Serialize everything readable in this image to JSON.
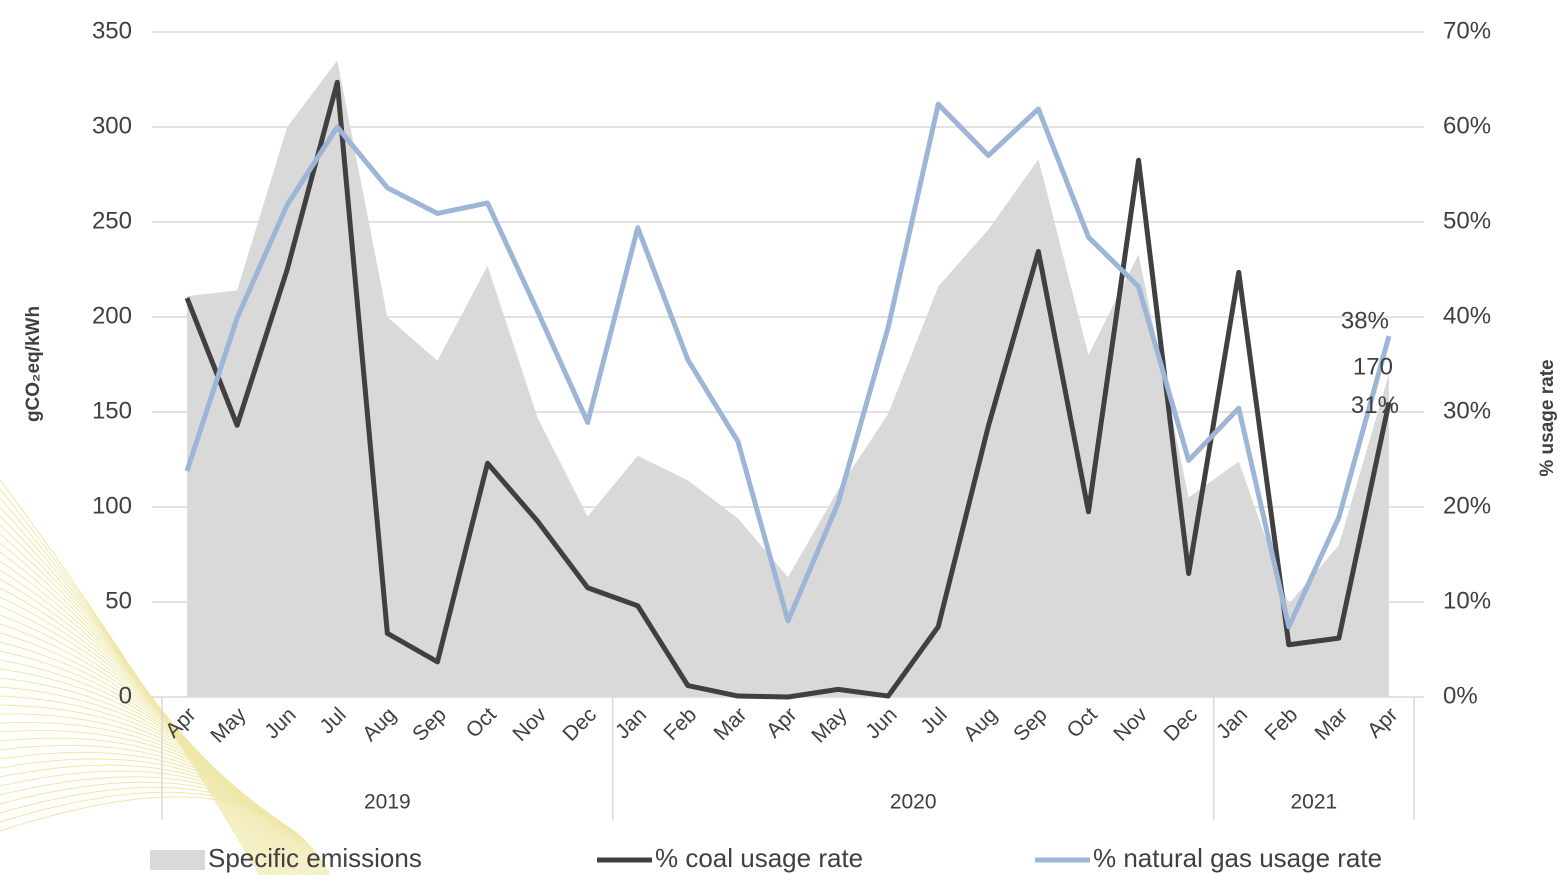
{
  "chart_data": {
    "type": "combo",
    "y_label": "gCO₂eq/kWh",
    "y2_label": "% usage rate",
    "categories": [
      "Apr",
      "May",
      "Jun",
      "Jul",
      "Aug",
      "Sep",
      "Oct",
      "Nov",
      "Dec",
      "Jan",
      "Feb",
      "Mar",
      "Apr",
      "May",
      "Jun",
      "Jul",
      "Aug",
      "Sep",
      "Oct",
      "Nov",
      "Dec",
      "Jan",
      "Feb",
      "Mar",
      "Apr"
    ],
    "category_groups": [
      {
        "label": "2019",
        "span": 9
      },
      {
        "label": "2020",
        "span": 12
      },
      {
        "label": "2021",
        "span": 4
      }
    ],
    "ylim": [
      0,
      350
    ],
    "yticks": [
      0,
      50,
      100,
      150,
      200,
      250,
      300,
      350
    ],
    "y2lim": [
      0,
      70
    ],
    "y2ticks": [
      {
        "value": 0,
        "label": "0%"
      },
      {
        "value": 10,
        "label": "10%"
      },
      {
        "value": 20,
        "label": "20%"
      },
      {
        "value": 30,
        "label": "30%"
      },
      {
        "value": 40,
        "label": "40%"
      },
      {
        "value": 50,
        "label": "50%"
      },
      {
        "value": 60,
        "label": "60%"
      },
      {
        "value": 70,
        "label": "70%"
      }
    ],
    "grid": true,
    "legend": "bottom",
    "series": [
      {
        "name": "Specific emissions",
        "type": "area",
        "axis": "y",
        "color": "#d9d9d9",
        "values": [
          211,
          214,
          300,
          335,
          200,
          177,
          227,
          147,
          95,
          127,
          114,
          94,
          63,
          109,
          149,
          216,
          246,
          283,
          180,
          233,
          105,
          124,
          49,
          80,
          170
        ],
        "value_labels": [
          null,
          null,
          null,
          null,
          null,
          null,
          null,
          null,
          null,
          null,
          null,
          null,
          null,
          null,
          null,
          null,
          null,
          null,
          null,
          null,
          null,
          null,
          null,
          null,
          "170"
        ]
      },
      {
        "name": "% coal usage rate",
        "type": "line",
        "axis": "y2",
        "color": "#404040",
        "values": [
          42,
          28.6,
          45,
          64.7,
          6.7,
          3.7,
          24.6,
          18.5,
          11.5,
          9.6,
          1.2,
          0.1,
          0,
          0.8,
          0.1,
          7.4,
          28.5,
          46.9,
          19.5,
          56.5,
          13,
          44.7,
          5.5,
          6.2,
          31
        ],
        "value_labels": [
          null,
          null,
          null,
          null,
          null,
          null,
          null,
          null,
          null,
          null,
          null,
          null,
          null,
          null,
          null,
          null,
          null,
          null,
          null,
          null,
          null,
          null,
          null,
          null,
          "31%"
        ]
      },
      {
        "name": "% natural gas usage rate",
        "type": "line",
        "axis": "y2",
        "color": "#9db5d6",
        "values": [
          23.8,
          39.9,
          51.8,
          60,
          53.6,
          50.9,
          52,
          40.6,
          28.9,
          49.4,
          35.5,
          26.9,
          8,
          20.4,
          38.9,
          62.4,
          57,
          61.9,
          48.4,
          43.2,
          24.9,
          30.4,
          7.4,
          18.9,
          38
        ],
        "value_labels": [
          null,
          null,
          null,
          null,
          null,
          null,
          null,
          null,
          null,
          null,
          null,
          null,
          null,
          null,
          null,
          null,
          null,
          null,
          null,
          null,
          null,
          null,
          null,
          null,
          "38%"
        ]
      }
    ]
  }
}
